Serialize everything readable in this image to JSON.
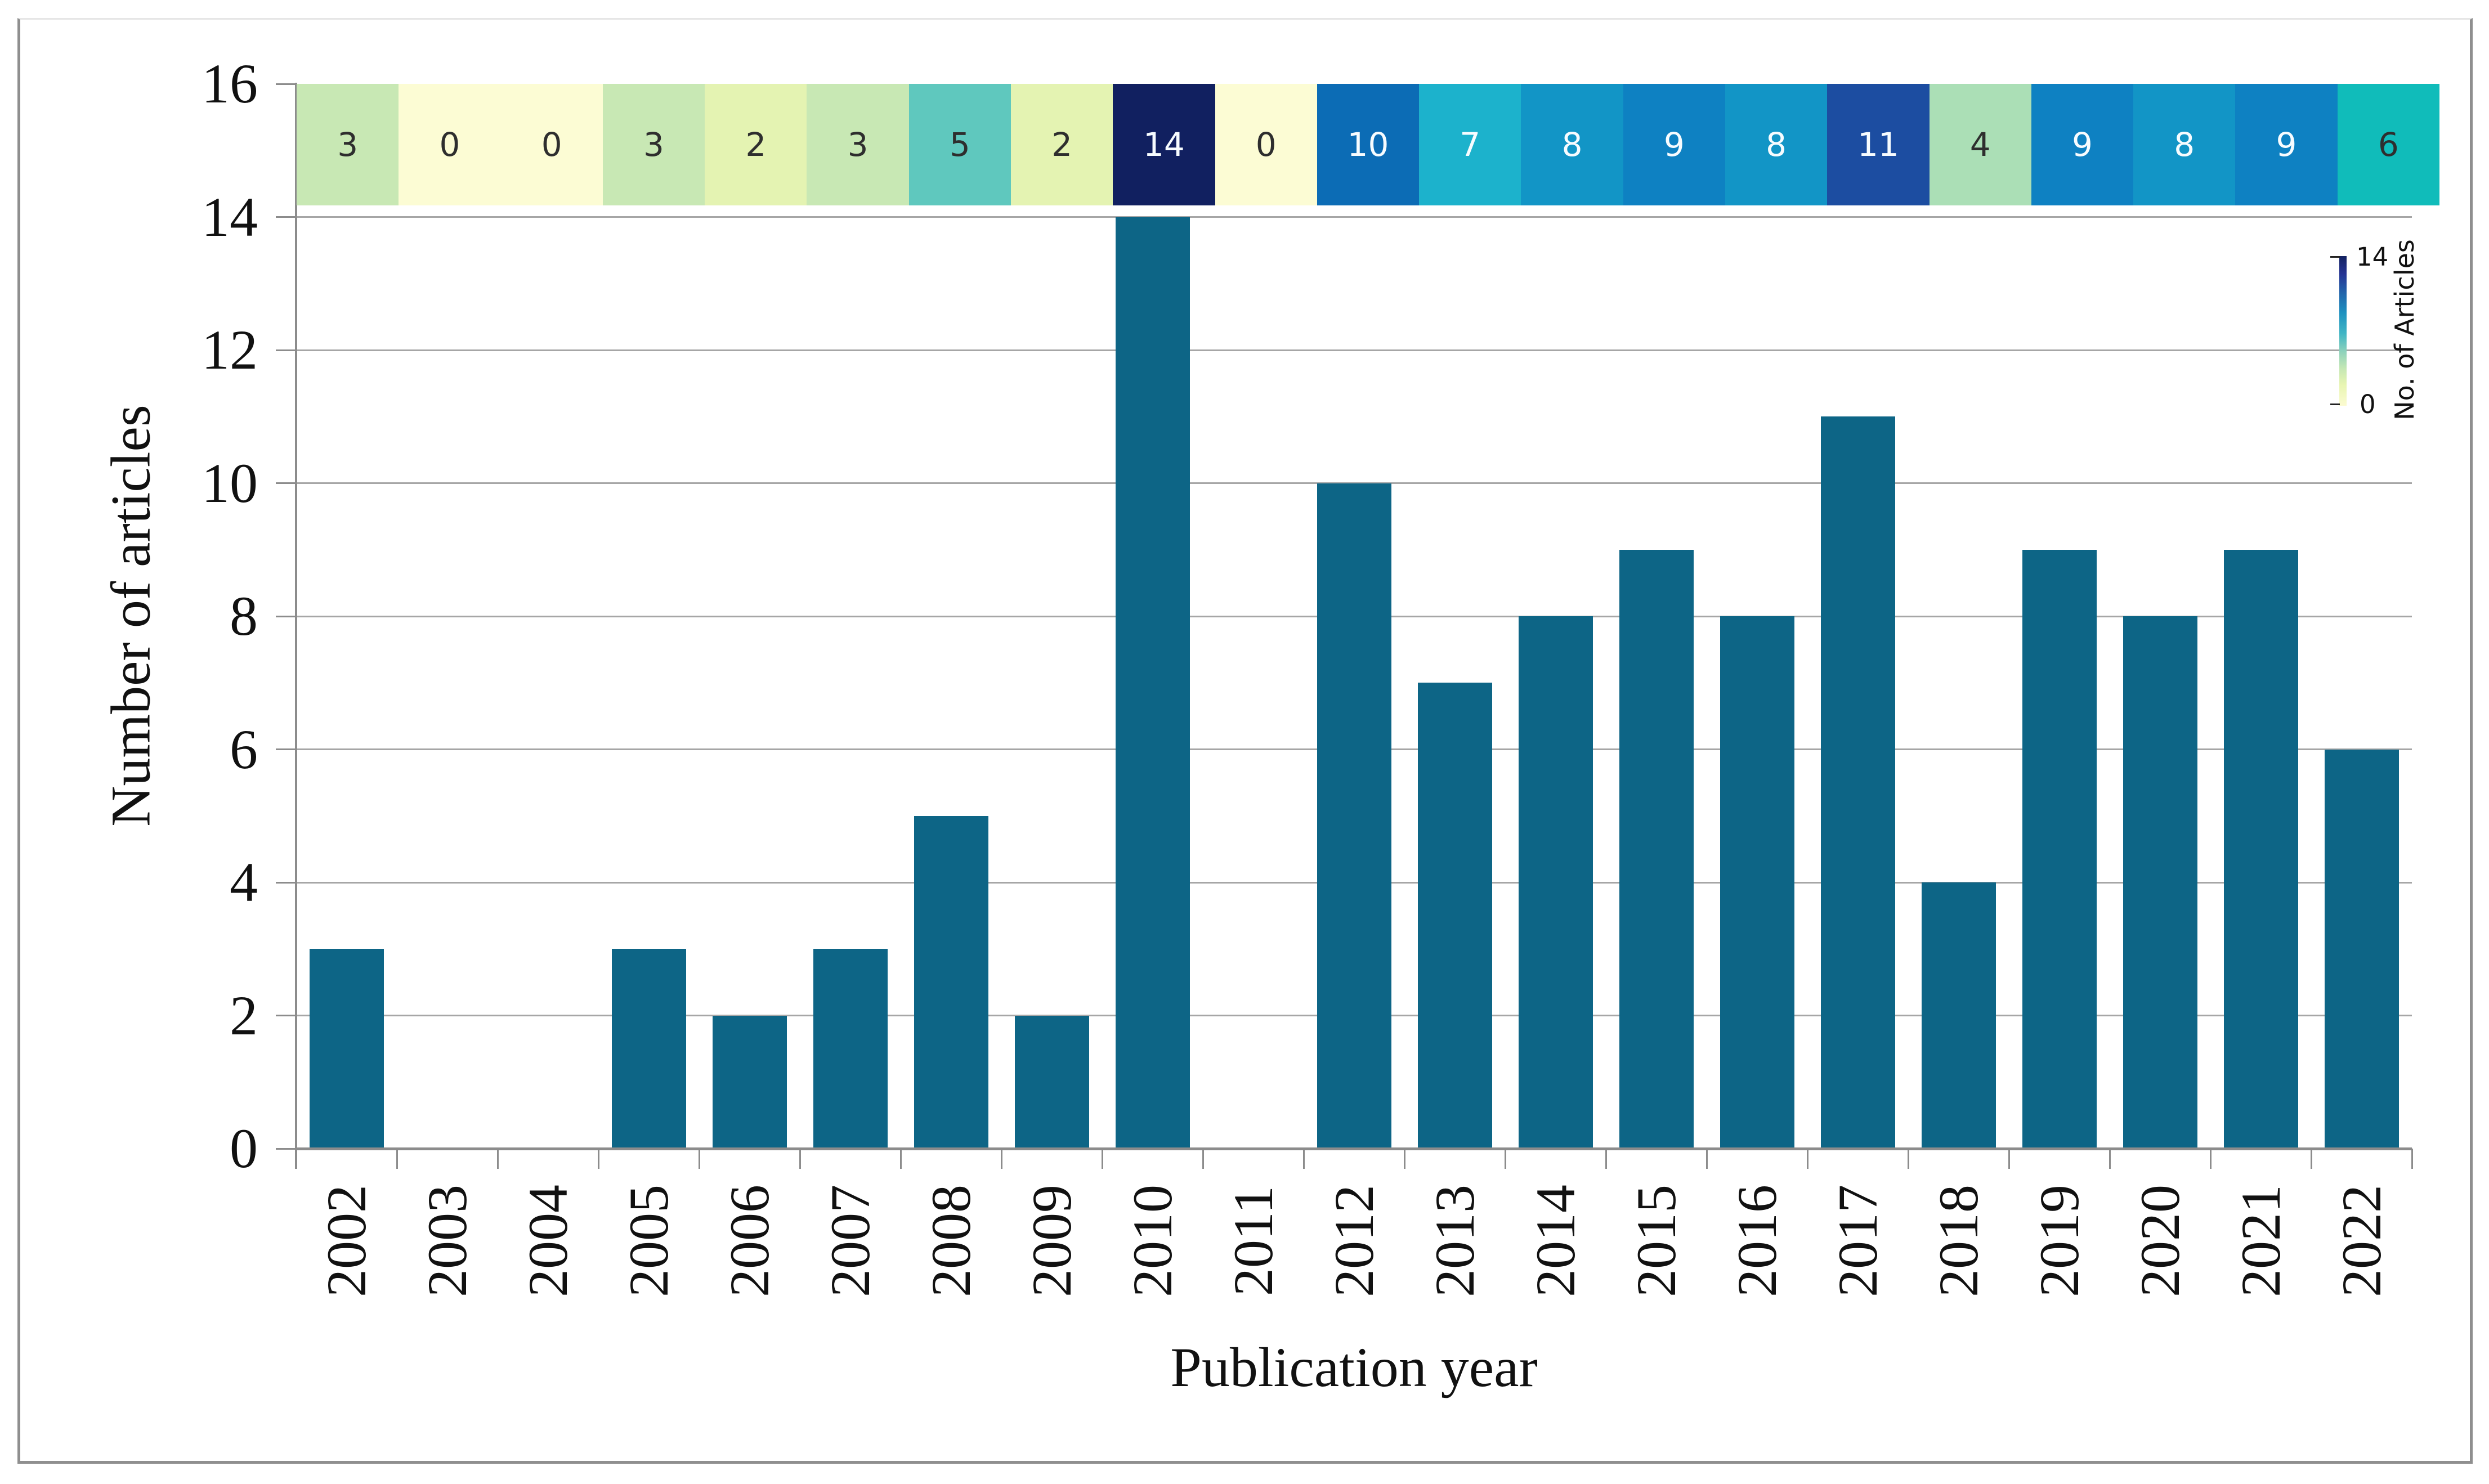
{
  "figure": {
    "xlabel": "Publication year",
    "ylabel": "Number of articles"
  },
  "chart_data": {
    "type": "bar",
    "title": "",
    "xlabel": "Publication year",
    "ylabel": "Number of articles",
    "categories": [
      "2002",
      "2003",
      "2004",
      "2005",
      "2006",
      "2007",
      "2008",
      "2009",
      "2010",
      "2011",
      "2012",
      "2013",
      "2014",
      "2015",
      "2016",
      "2017",
      "2018",
      "2019",
      "2020",
      "2021",
      "2022"
    ],
    "values": [
      3,
      0,
      0,
      3,
      2,
      3,
      5,
      2,
      14,
      0,
      10,
      7,
      8,
      9,
      8,
      11,
      4,
      9,
      8,
      9,
      6
    ],
    "ylim": [
      0,
      16
    ],
    "yticks": [
      "0",
      "2",
      "4",
      "6",
      "8",
      "10",
      "12",
      "14",
      "16"
    ],
    "grid": true,
    "legend_position": "none",
    "bar_color": "#0d6586",
    "grid_color": "#a6a6a6",
    "axis_color": "#8c8c8c",
    "heatmap_strip": {
      "values": [
        "3",
        "0",
        "0",
        "3",
        "2",
        "3",
        "5",
        "2",
        "14",
        "0",
        "10",
        "7",
        "8",
        "9",
        "8",
        "11",
        "4",
        "9",
        "8",
        "9",
        "6"
      ],
      "cell_colors": [
        "#c8e8b4",
        "#fcfcd4",
        "#fcfcd4",
        "#c8e8b4",
        "#e4f3b2",
        "#c8e8b4",
        "#5fc8be",
        "#e4f3b2",
        "#112060",
        "#fcfcd4",
        "#0c6cb5",
        "#1cb2cc",
        "#1295c6",
        "#0e81c2",
        "#1295c6",
        "#1c4da1",
        "#abdfb6",
        "#0e81c2",
        "#1295c6",
        "#0e81c2",
        "#10bcba"
      ],
      "label_colors": [
        "#2e2e2e",
        "#2e2e2e",
        "#2e2e2e",
        "#2e2e2e",
        "#2e2e2e",
        "#2e2e2e",
        "#2e2e2e",
        "#2e2e2e",
        "#f7fcff",
        "#2e2e2e",
        "#f7fcff",
        "#f7fcff",
        "#f7fcff",
        "#f7fcff",
        "#f7fcff",
        "#f7fcff",
        "#2e2e2e",
        "#f7fcff",
        "#f7fcff",
        "#f7fcff",
        "#2e2e2e"
      ]
    },
    "colorbar": {
      "label": "No. of Articles",
      "max_label": "14",
      "min_label": "0",
      "gradient_bottom_to_top": [
        "#fbfbd1 0%",
        "#e8f5b2 14%",
        "#c4e7b4 25%",
        "#8ed2bb 36%",
        "#41b6c4 48%",
        "#1d91c0 62%",
        "#225ea8 77%",
        "#253494 88%",
        "#132160 100%"
      ]
    }
  }
}
